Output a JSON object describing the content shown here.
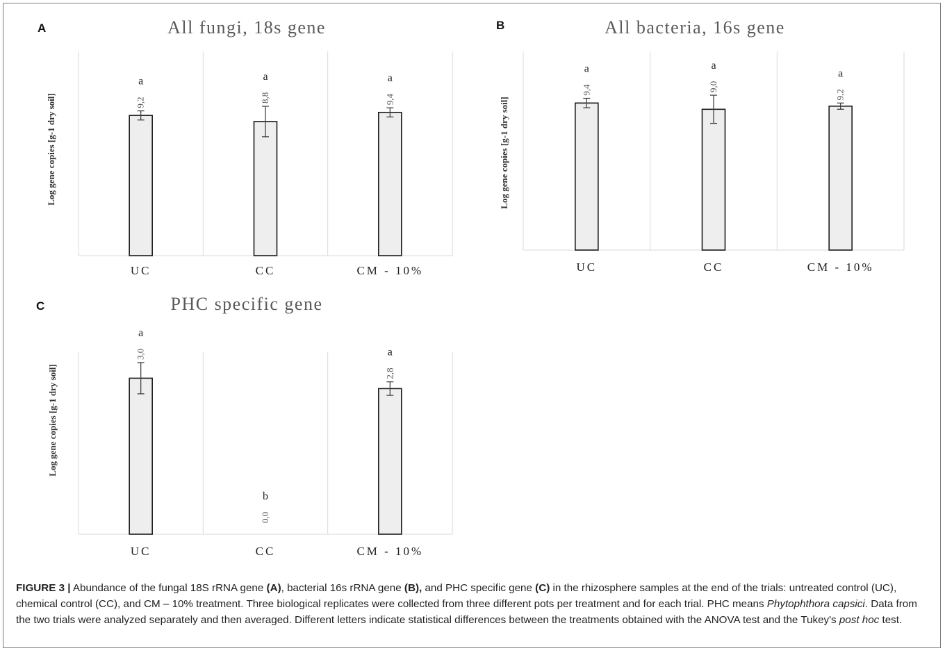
{
  "figure": {
    "panels": [
      {
        "letter": "A",
        "title": "All fungi, 18s gene"
      },
      {
        "letter": "B",
        "title": "All bacteria, 16s gene"
      },
      {
        "letter": "C",
        "title": "PHC specific gene"
      }
    ],
    "caption": {
      "label": "FIGURE 3 |",
      "t1": " Abundance of the fungal 18S rRNA gene ",
      "r1": "(A)",
      "t2": ", bacterial 16s rRNA gene ",
      "r2": "(B),",
      "t3": " and PHC specific gene ",
      "r3": "(C)",
      "t4": " in the rhizosphere samples at the end of the trials: untreated control (UC), chemical control (CC), and CM – 10% treatment. Three biological replicates were collected from three different pots per treatment and for each trial. PHC means ",
      "species": "Phytophthora capsici",
      "t5": ". Data from the two trials were analyzed separately and then averaged. Different letters indicate statistical differences between the treatments obtained with the ANOVA test and the Tukey's ",
      "posthoc": "post hoc",
      "t6": " test."
    }
  },
  "chart_data": [
    {
      "type": "bar",
      "panel": "A",
      "title": "All fungi, 18s gene",
      "ylabel": "Log gene copies [g-1 dry soil]",
      "categories": [
        "UC",
        "CC",
        "CM - 10%"
      ],
      "values": [
        9.2,
        8.8,
        9.4
      ],
      "value_labels": [
        "9,2",
        "8,8",
        "9,4"
      ],
      "error": [
        0.3,
        1.0,
        0.3
      ],
      "letters": [
        "a",
        "a",
        "a"
      ],
      "ylim": [
        0,
        13.4
      ],
      "bar_color": "#eeeeee",
      "grid": "vertical separators"
    },
    {
      "type": "bar",
      "panel": "B",
      "title": "All bacteria, 16s gene",
      "ylabel": "Log gene copies [g-1 dry soil]",
      "categories": [
        "UC",
        "CC",
        "CM - 10%"
      ],
      "values": [
        9.4,
        9.0,
        9.2
      ],
      "value_labels": [
        "9,4",
        "9,0",
        "9,2"
      ],
      "error": [
        0.3,
        0.9,
        0.2
      ],
      "letters": [
        "a",
        "a",
        "a"
      ],
      "ylim": [
        0,
        12.7
      ],
      "bar_color": "#eeeeee",
      "grid": "vertical separators"
    },
    {
      "type": "bar",
      "panel": "C",
      "title": "PHC specific gene",
      "ylabel": "Log gene copies [g-1 dry soil]",
      "categories": [
        "UC",
        "CC",
        "CM - 10%"
      ],
      "values": [
        3.0,
        0.0,
        2.8
      ],
      "value_labels": [
        "3,0",
        "0,0",
        "2,8"
      ],
      "error": [
        0.3,
        0.0,
        0.13
      ],
      "letters": [
        "a",
        "b",
        "a"
      ],
      "ylim": [
        0,
        3.5
      ],
      "bar_color": "#eeeeee",
      "grid": "vertical separators"
    }
  ]
}
